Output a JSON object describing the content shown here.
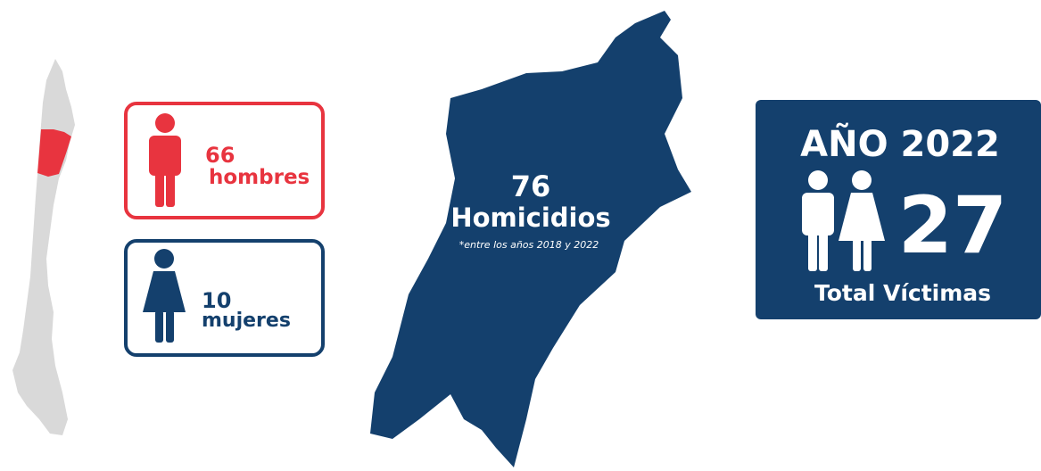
{
  "men": {
    "count": 66,
    "label": "hombres"
  },
  "women": {
    "count": 10,
    "label": "mujeres"
  },
  "center": {
    "count": 76,
    "label": "Homicidios",
    "note": "*entre los años 2018 y 2022"
  },
  "year_box": {
    "title": "AÑO 2022",
    "count": 27,
    "label": "Total Víctimas"
  }
}
